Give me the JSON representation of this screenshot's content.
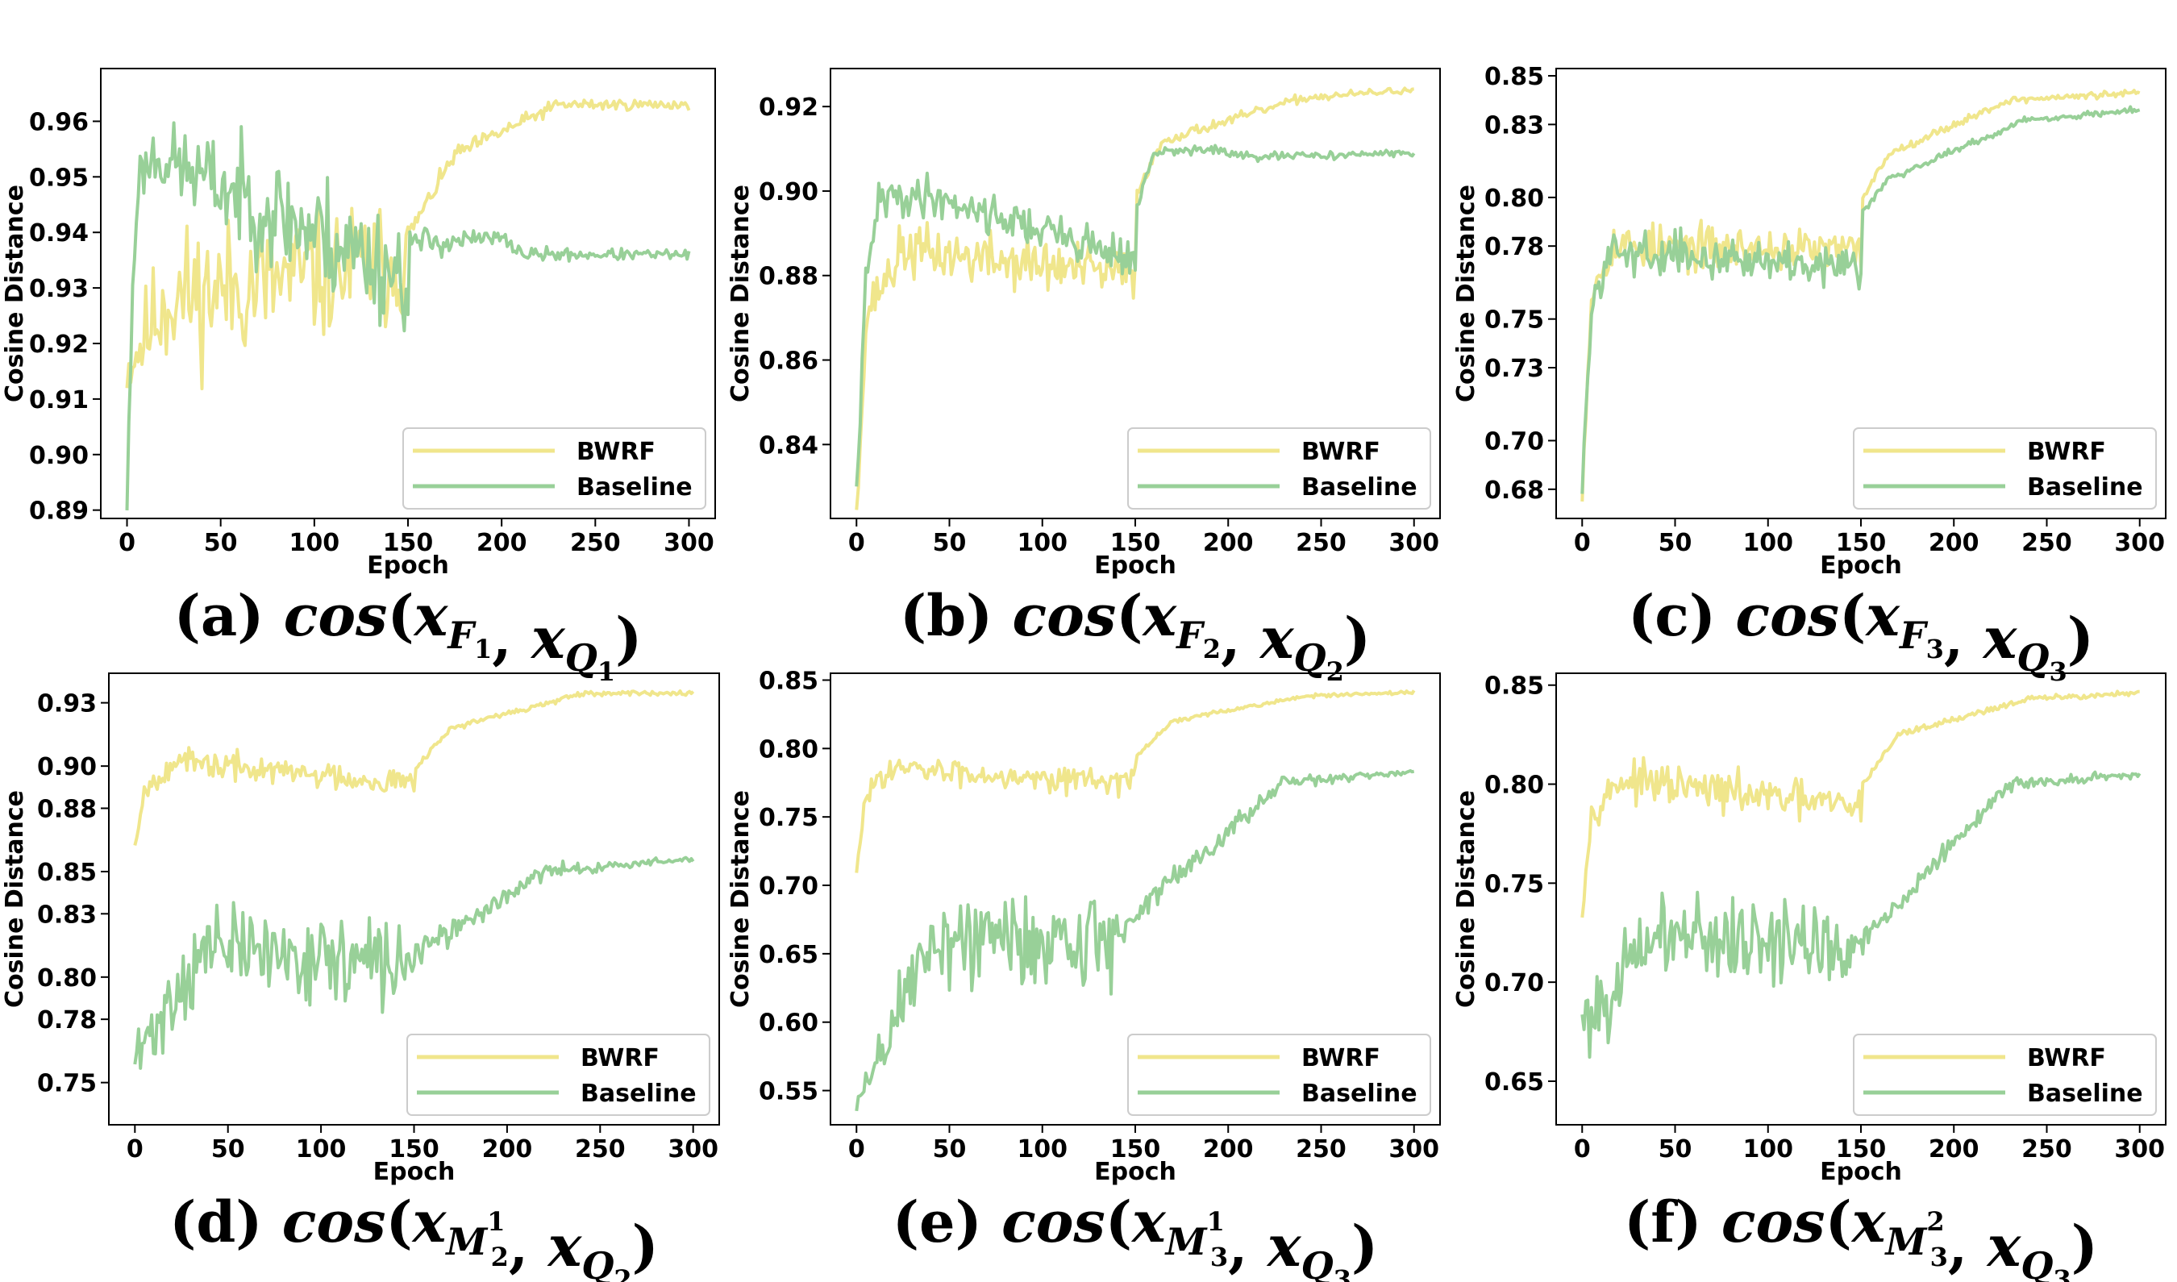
{
  "colors": {
    "bwrf": "#f0e68c",
    "baseline": "#98d098",
    "axis": "#000000",
    "background": "#ffffff"
  },
  "chart_data": [
    {
      "type": "line",
      "caption": {
        "label": "(a)",
        "fn": "cos",
        "x1_base": "x",
        "x1_sub": "F",
        "x1_subsub": "1",
        "x1_sup": "",
        "x2_base": "x",
        "x2_sub": "Q",
        "x2_subsub": "1"
      },
      "xlabel": "Epoch",
      "ylabel": "Cosine Distance",
      "xlim": [
        -14,
        314
      ],
      "ylim": [
        0.8885,
        0.9695
      ],
      "xticks": [
        0,
        50,
        100,
        150,
        200,
        250,
        300
      ],
      "yticks": [
        0.89,
        0.9,
        0.91,
        0.92,
        0.93,
        0.94,
        0.95,
        0.96
      ],
      "ytick_labels": [
        "0.89",
        "0.90",
        "0.91",
        "0.92",
        "0.93",
        "0.94",
        "0.95",
        "0.96"
      ],
      "legend": {
        "position": "lower right",
        "entries": [
          "BWRF",
          "Baseline"
        ]
      },
      "series": [
        {
          "name": "BWRF",
          "color": "#f0e68c",
          "profile": [
            [
              0,
              0.915
            ],
            [
              20,
              0.928
            ],
            [
              150,
              0.935
            ],
            [
              151,
              0.94
            ],
            [
              175,
              0.954
            ],
            [
              230,
              0.963
            ],
            [
              300,
              0.963
            ]
          ],
          "noise": [
            [
              0,
              0.003
            ],
            [
              20,
              0.008
            ],
            [
              150,
              0.007
            ],
            [
              151,
              0.001
            ],
            [
              300,
              0.0005
            ]
          ],
          "seed": 11
        },
        {
          "name": "Baseline",
          "color": "#98d098",
          "profile": [
            [
              0,
              0.891
            ],
            [
              3,
              0.93
            ],
            [
              6,
              0.95
            ],
            [
              15,
              0.954
            ],
            [
              150,
              0.932
            ],
            [
              151,
              0.938
            ],
            [
              200,
              0.939
            ],
            [
              212,
              0.936
            ],
            [
              300,
              0.936
            ]
          ],
          "noise": [
            [
              0,
              0.002
            ],
            [
              15,
              0.004
            ],
            [
              100,
              0.007
            ],
            [
              150,
              0.006
            ],
            [
              151,
              0.002
            ],
            [
              200,
              0.0008
            ],
            [
              300,
              0.0005
            ]
          ],
          "seed": 23
        }
      ]
    },
    {
      "type": "line",
      "caption": {
        "label": "(b)",
        "fn": "cos",
        "x1_base": "x",
        "x1_sub": "F",
        "x1_subsub": "2",
        "x1_sup": "",
        "x2_base": "x",
        "x2_sub": "Q",
        "x2_subsub": "2"
      },
      "xlabel": "Epoch",
      "ylabel": "Cosine Distance",
      "xlim": [
        -14,
        314
      ],
      "ylim": [
        0.8225,
        0.929
      ],
      "xticks": [
        0,
        50,
        100,
        150,
        200,
        250,
        300
      ],
      "yticks": [
        0.84,
        0.86,
        0.88,
        0.9,
        0.92
      ],
      "ytick_labels": [
        "0.84",
        "0.86",
        "0.88",
        "0.90",
        "0.92"
      ],
      "legend": {
        "position": "lower right",
        "entries": [
          "BWRF",
          "Baseline"
        ]
      },
      "series": [
        {
          "name": "BWRF",
          "color": "#f0e68c",
          "profile": [
            [
              0,
              0.826
            ],
            [
              6,
              0.872
            ],
            [
              25,
              0.886
            ],
            [
              150,
              0.88
            ],
            [
              151,
              0.9
            ],
            [
              165,
              0.912
            ],
            [
              240,
              0.922
            ],
            [
              300,
              0.924
            ]
          ],
          "noise": [
            [
              0,
              0.002
            ],
            [
              20,
              0.004
            ],
            [
              150,
              0.004
            ],
            [
              151,
              0.0008
            ],
            [
              300,
              0.0005
            ]
          ],
          "seed": 37
        },
        {
          "name": "Baseline",
          "color": "#98d098",
          "profile": [
            [
              0,
              0.828
            ],
            [
              5,
              0.878
            ],
            [
              12,
              0.898
            ],
            [
              40,
              0.899
            ],
            [
              150,
              0.884
            ],
            [
              151,
              0.896
            ],
            [
              160,
              0.909
            ],
            [
              190,
              0.91
            ],
            [
              210,
              0.908
            ],
            [
              300,
              0.909
            ]
          ],
          "noise": [
            [
              0,
              0.002
            ],
            [
              20,
              0.003
            ],
            [
              150,
              0.003
            ],
            [
              151,
              0.0008
            ],
            [
              300,
              0.0004
            ]
          ],
          "seed": 41
        }
      ]
    },
    {
      "type": "line",
      "caption": {
        "label": "(c)",
        "fn": "cos",
        "x1_base": "x",
        "x1_sub": "F",
        "x1_subsub": "3",
        "x1_sup": "",
        "x2_base": "x",
        "x2_sub": "Q",
        "x2_subsub": "3"
      },
      "xlabel": "Epoch",
      "ylabel": "Cosine Distance",
      "xlim": [
        -14,
        314
      ],
      "ylim": [
        0.668,
        0.853
      ],
      "xticks": [
        0,
        50,
        100,
        150,
        200,
        250,
        300
      ],
      "yticks": [
        0.68,
        0.7,
        0.73,
        0.75,
        0.78,
        0.8,
        0.83,
        0.85
      ],
      "ytick_labels": [
        "0.68",
        "0.70",
        "0.73",
        "0.75",
        "0.78",
        "0.80",
        "0.83",
        "0.85"
      ],
      "legend": {
        "position": "lower right",
        "entries": [
          "BWRF",
          "Baseline"
        ]
      },
      "series": [
        {
          "name": "BWRF",
          "color": "#f0e68c",
          "profile": [
            [
              0,
              0.68
            ],
            [
              5,
              0.76
            ],
            [
              15,
              0.78
            ],
            [
              150,
              0.778
            ],
            [
              151,
              0.8
            ],
            [
              165,
              0.818
            ],
            [
              230,
              0.84
            ],
            [
              300,
              0.843
            ]
          ],
          "noise": [
            [
              0,
              0.003
            ],
            [
              15,
              0.006
            ],
            [
              150,
              0.005
            ],
            [
              151,
              0.001
            ],
            [
              300,
              0.0008
            ]
          ],
          "seed": 53
        },
        {
          "name": "Baseline",
          "color": "#98d098",
          "profile": [
            [
              0,
              0.68
            ],
            [
              5,
              0.755
            ],
            [
              15,
              0.778
            ],
            [
              150,
              0.772
            ],
            [
              151,
              0.794
            ],
            [
              165,
              0.808
            ],
            [
              240,
              0.832
            ],
            [
              300,
              0.836
            ]
          ],
          "noise": [
            [
              0,
              0.003
            ],
            [
              15,
              0.005
            ],
            [
              150,
              0.005
            ],
            [
              151,
              0.001
            ],
            [
              300,
              0.0008
            ]
          ],
          "seed": 59
        }
      ]
    },
    {
      "type": "line",
      "caption": {
        "label": "(d)",
        "fn": "cos",
        "x1_base": "x",
        "x1_sub": "M",
        "x1_subsub": "2",
        "x1_sup": "1",
        "x2_base": "x",
        "x2_sub": "Q",
        "x2_subsub": "2"
      },
      "xlabel": "Epoch",
      "ylabel": "Cosine Distance",
      "xlim": [
        -14,
        314
      ],
      "ylim": [
        0.73,
        0.944
      ],
      "xticks": [
        0,
        50,
        100,
        150,
        200,
        250,
        300
      ],
      "yticks": [
        0.75,
        0.78,
        0.8,
        0.83,
        0.85,
        0.88,
        0.9,
        0.93
      ],
      "ytick_labels": [
        "0.75",
        "0.78",
        "0.80",
        "0.83",
        "0.85",
        "0.88",
        "0.90",
        "0.93"
      ],
      "legend": {
        "position": "lower right",
        "entries": [
          "BWRF",
          "Baseline"
        ]
      },
      "series": [
        {
          "name": "BWRF",
          "color": "#f0e68c",
          "profile": [
            [
              0,
              0.863
            ],
            [
              5,
              0.888
            ],
            [
              20,
              0.902
            ],
            [
              150,
              0.892
            ],
            [
              151,
              0.9
            ],
            [
              170,
              0.918
            ],
            [
              240,
              0.934
            ],
            [
              300,
              0.935
            ]
          ],
          "noise": [
            [
              0,
              0.002
            ],
            [
              20,
              0.004
            ],
            [
              150,
              0.004
            ],
            [
              151,
              0.001
            ],
            [
              300,
              0.0006
            ]
          ],
          "seed": 67
        },
        {
          "name": "Baseline",
          "color": "#98d098",
          "profile": [
            [
              0,
              0.76
            ],
            [
              20,
              0.79
            ],
            [
              40,
              0.815
            ],
            [
              140,
              0.805
            ],
            [
              150,
              0.81
            ],
            [
              220,
              0.85
            ],
            [
              300,
              0.856
            ]
          ],
          "noise": [
            [
              0,
              0.01
            ],
            [
              20,
              0.012
            ],
            [
              140,
              0.013
            ],
            [
              150,
              0.004
            ],
            [
              220,
              0.002
            ],
            [
              300,
              0.0008
            ]
          ],
          "seed": 71
        }
      ]
    },
    {
      "type": "line",
      "caption": {
        "label": "(e)",
        "fn": "cos",
        "x1_base": "x",
        "x1_sub": "M",
        "x1_subsub": "3",
        "x1_sup": "1",
        "x2_base": "x",
        "x2_sub": "Q",
        "x2_subsub": "3"
      },
      "xlabel": "Epoch",
      "ylabel": "Cosine Distance",
      "xlim": [
        -14,
        314
      ],
      "ylim": [
        0.525,
        0.855
      ],
      "xticks": [
        0,
        50,
        100,
        150,
        200,
        250,
        300
      ],
      "yticks": [
        0.55,
        0.6,
        0.65,
        0.7,
        0.75,
        0.8,
        0.85
      ],
      "ytick_labels": [
        "0.55",
        "0.60",
        "0.65",
        "0.70",
        "0.75",
        "0.80",
        "0.85"
      ],
      "legend": {
        "position": "lower right",
        "entries": [
          "BWRF",
          "Baseline"
        ]
      },
      "series": [
        {
          "name": "BWRF",
          "color": "#f0e68c",
          "profile": [
            [
              0,
              0.708
            ],
            [
              5,
              0.765
            ],
            [
              15,
              0.785
            ],
            [
              150,
              0.776
            ],
            [
              151,
              0.795
            ],
            [
              170,
              0.82
            ],
            [
              240,
              0.838
            ],
            [
              300,
              0.841
            ]
          ],
          "noise": [
            [
              0,
              0.003
            ],
            [
              15,
              0.006
            ],
            [
              150,
              0.006
            ],
            [
              151,
              0.001
            ],
            [
              300,
              0.0008
            ]
          ],
          "seed": 83
        },
        {
          "name": "Baseline",
          "color": "#98d098",
          "profile": [
            [
              0,
              0.537
            ],
            [
              20,
              0.6
            ],
            [
              40,
              0.66
            ],
            [
              140,
              0.66
            ],
            [
              150,
              0.68
            ],
            [
              230,
              0.775
            ],
            [
              300,
              0.783
            ]
          ],
          "noise": [
            [
              0,
              0.01
            ],
            [
              20,
              0.02
            ],
            [
              140,
              0.025
            ],
            [
              150,
              0.006
            ],
            [
              230,
              0.003
            ],
            [
              300,
              0.001
            ]
          ],
          "seed": 89
        }
      ]
    },
    {
      "type": "line",
      "caption": {
        "label": "(f)",
        "fn": "cos",
        "x1_base": "x",
        "x1_sub": "M",
        "x1_subsub": "3",
        "x1_sup": "2",
        "x2_base": "x",
        "x2_sub": "Q",
        "x2_subsub": "3"
      },
      "xlabel": "Epoch",
      "ylabel": "Cosine Distance",
      "xlim": [
        -14,
        314
      ],
      "ylim": [
        0.628,
        0.856
      ],
      "xticks": [
        0,
        50,
        100,
        150,
        200,
        250,
        300
      ],
      "yticks": [
        0.65,
        0.7,
        0.75,
        0.8,
        0.85
      ],
      "ytick_labels": [
        "0.65",
        "0.70",
        "0.75",
        "0.80",
        "0.85"
      ],
      "legend": {
        "position": "lower right",
        "entries": [
          "BWRF",
          "Baseline"
        ]
      },
      "series": [
        {
          "name": "BWRF",
          "color": "#f0e68c",
          "profile": [
            [
              0,
              0.737
            ],
            [
              5,
              0.785
            ],
            [
              20,
              0.802
            ],
            [
              150,
              0.788
            ],
            [
              151,
              0.8
            ],
            [
              170,
              0.825
            ],
            [
              240,
              0.843
            ],
            [
              300,
              0.846
            ]
          ],
          "noise": [
            [
              0,
              0.003
            ],
            [
              20,
              0.006
            ],
            [
              150,
              0.006
            ],
            [
              151,
              0.001
            ],
            [
              300,
              0.0008
            ]
          ],
          "seed": 97
        },
        {
          "name": "Baseline",
          "color": "#98d098",
          "profile": [
            [
              0,
              0.68
            ],
            [
              20,
              0.7
            ],
            [
              40,
              0.725
            ],
            [
              140,
              0.718
            ],
            [
              150,
              0.72
            ],
            [
              230,
              0.8
            ],
            [
              300,
              0.805
            ]
          ],
          "noise": [
            [
              0,
              0.012
            ],
            [
              20,
              0.012
            ],
            [
              140,
              0.015
            ],
            [
              150,
              0.004
            ],
            [
              230,
              0.002
            ],
            [
              300,
              0.001
            ]
          ],
          "seed": 101
        }
      ]
    }
  ]
}
